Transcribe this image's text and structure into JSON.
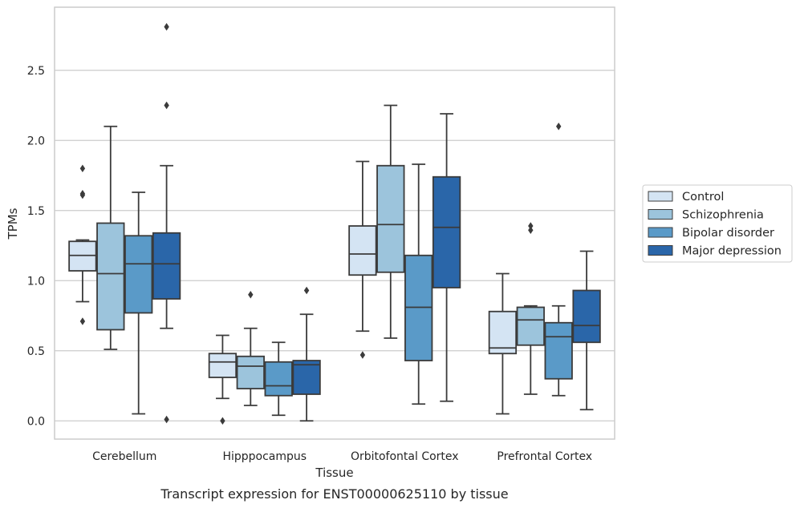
{
  "caption": "Transcript expression for ENST00000625110 by tissue",
  "chart_data": {
    "type": "box",
    "xlabel": "Tissue",
    "ylabel": "TPMs",
    "ylim": [
      -0.13,
      2.95
    ],
    "yticks": [
      0.0,
      0.5,
      1.0,
      1.5,
      2.0,
      2.5
    ],
    "ytick_labels": [
      "0.0",
      "0.5",
      "1.0",
      "1.5",
      "2.0",
      "2.5"
    ],
    "grid": "horizontal",
    "legend_position": "right",
    "categories": [
      "Cerebellum",
      "Hipppocampus",
      "Orbitofontal Cortex",
      "Prefrontal Cortex"
    ],
    "series": [
      {
        "name": "Control",
        "color": "#d4e4f3",
        "boxes": [
          {
            "whislo": 0.85,
            "q1": 1.07,
            "med": 1.18,
            "q3": 1.28,
            "whishi": 1.29,
            "fliers": [
              1.8,
              1.62,
              1.61,
              0.71
            ]
          },
          {
            "whislo": 0.16,
            "q1": 0.31,
            "med": 0.42,
            "q3": 0.48,
            "whishi": 0.61,
            "fliers": [
              0.0
            ]
          },
          {
            "whislo": 0.64,
            "q1": 1.04,
            "med": 1.19,
            "q3": 1.39,
            "whishi": 1.85,
            "fliers": [
              0.47
            ]
          },
          {
            "whislo": 0.05,
            "q1": 0.48,
            "med": 0.52,
            "q3": 0.78,
            "whishi": 1.05,
            "fliers": []
          }
        ]
      },
      {
        "name": "Schizophrenia",
        "color": "#9cc4dc",
        "boxes": [
          {
            "whislo": 0.51,
            "q1": 0.65,
            "med": 1.05,
            "q3": 1.41,
            "whishi": 2.1,
            "fliers": []
          },
          {
            "whislo": 0.11,
            "q1": 0.23,
            "med": 0.39,
            "q3": 0.46,
            "whishi": 0.66,
            "fliers": [
              0.9
            ]
          },
          {
            "whislo": 0.59,
            "q1": 1.06,
            "med": 1.4,
            "q3": 1.82,
            "whishi": 2.25,
            "fliers": []
          },
          {
            "whislo": 0.19,
            "q1": 0.54,
            "med": 0.72,
            "q3": 0.81,
            "whishi": 0.82,
            "fliers": [
              1.39,
              1.36
            ]
          }
        ]
      },
      {
        "name": "Bipolar disorder",
        "color": "#5a9ac8",
        "boxes": [
          {
            "whislo": 0.05,
            "q1": 0.77,
            "med": 1.12,
            "q3": 1.32,
            "whishi": 1.63,
            "fliers": []
          },
          {
            "whislo": 0.04,
            "q1": 0.18,
            "med": 0.25,
            "q3": 0.42,
            "whishi": 0.56,
            "fliers": []
          },
          {
            "whislo": 0.12,
            "q1": 0.43,
            "med": 0.81,
            "q3": 1.18,
            "whishi": 1.83,
            "fliers": []
          },
          {
            "whislo": 0.18,
            "q1": 0.3,
            "med": 0.6,
            "q3": 0.7,
            "whishi": 0.82,
            "fliers": [
              2.1
            ]
          }
        ]
      },
      {
        "name": "Major depression",
        "color": "#2a66a9",
        "boxes": [
          {
            "whislo": 0.66,
            "q1": 0.87,
            "med": 1.12,
            "q3": 1.34,
            "whishi": 1.82,
            "fliers": [
              2.81,
              2.25,
              0.01
            ]
          },
          {
            "whislo": 0.0,
            "q1": 0.19,
            "med": 0.4,
            "q3": 0.43,
            "whishi": 0.76,
            "fliers": [
              0.93
            ]
          },
          {
            "whislo": 0.14,
            "q1": 0.95,
            "med": 1.38,
            "q3": 1.74,
            "whishi": 2.19,
            "fliers": []
          },
          {
            "whislo": 0.08,
            "q1": 0.56,
            "med": 0.68,
            "q3": 0.93,
            "whishi": 1.21,
            "fliers": []
          }
        ]
      }
    ]
  },
  "colors": {
    "frame": "#cccccc",
    "grid": "#cccccc",
    "box_edge": "#3b3b3b"
  }
}
